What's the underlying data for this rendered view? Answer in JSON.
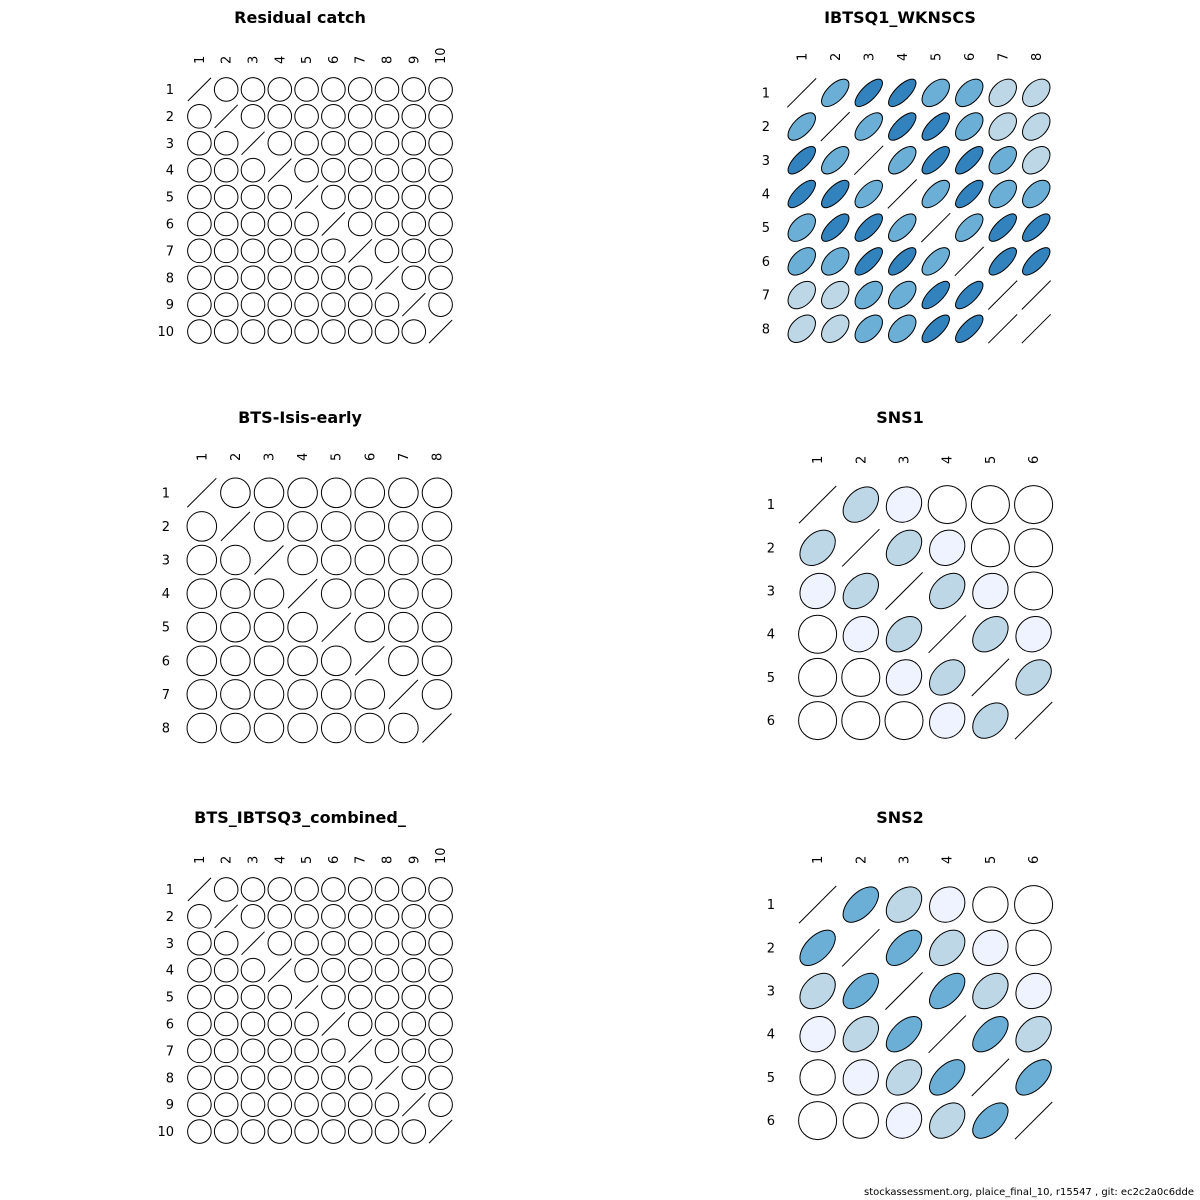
{
  "chart_data": [
    {
      "type": "correlation-ellipse-matrix",
      "title": "Residual catch",
      "labels": [
        "1",
        "2",
        "3",
        "4",
        "5",
        "6",
        "7",
        "8",
        "9",
        "10"
      ],
      "off_diagonal_correlation": 0.0
    },
    {
      "type": "correlation-ellipse-matrix",
      "title": "IBTSQ1_WKNSCS",
      "labels": [
        "1",
        "2",
        "3",
        "4",
        "5",
        "6",
        "7",
        "8"
      ],
      "matrix": [
        [
          1,
          0.62,
          0.72,
          0.72,
          0.48,
          0.48,
          0.4,
          0.4
        ],
        [
          0.62,
          1,
          0.6,
          0.7,
          0.7,
          0.48,
          0.4,
          0.4
        ],
        [
          0.72,
          0.6,
          1,
          0.6,
          0.7,
          0.72,
          0.48,
          0.4
        ],
        [
          0.72,
          0.7,
          0.6,
          1,
          0.62,
          0.72,
          0.48,
          0.48
        ],
        [
          0.48,
          0.7,
          0.7,
          0.62,
          1,
          0.62,
          0.72,
          0.72
        ],
        [
          0.48,
          0.48,
          0.72,
          0.72,
          0.62,
          1,
          0.72,
          0.72
        ],
        [
          0.4,
          0.4,
          0.48,
          0.48,
          0.72,
          0.72,
          1,
          1
        ],
        [
          0.4,
          0.4,
          0.48,
          0.48,
          0.72,
          0.72,
          1,
          1
        ]
      ]
    },
    {
      "type": "correlation-ellipse-matrix",
      "title": "BTS-Isis-early",
      "labels": [
        "1",
        "2",
        "3",
        "4",
        "5",
        "6",
        "7",
        "8"
      ],
      "off_diagonal_correlation": 0.0
    },
    {
      "type": "correlation-ellipse-matrix",
      "title": "SNS1",
      "labels": [
        "1",
        "2",
        "3",
        "4",
        "5",
        "6"
      ],
      "matrix": [
        [
          1,
          0.35,
          0.12,
          0.0,
          0.0,
          0.0
        ],
        [
          0.35,
          1,
          0.35,
          0.12,
          0.0,
          0.0
        ],
        [
          0.12,
          0.35,
          1,
          0.35,
          0.12,
          0.0
        ],
        [
          0.0,
          0.12,
          0.35,
          1,
          0.35,
          0.12
        ],
        [
          0.0,
          0.0,
          0.12,
          0.35,
          1,
          0.35
        ],
        [
          0.0,
          0.0,
          0.0,
          0.12,
          0.35,
          1
        ]
      ]
    },
    {
      "type": "correlation-ellipse-matrix",
      "title": "BTS_IBTSQ3_combined_",
      "labels": [
        "1",
        "2",
        "3",
        "4",
        "5",
        "6",
        "7",
        "8",
        "9",
        "10"
      ],
      "off_diagonal_correlation": 0.0
    },
    {
      "type": "correlation-ellipse-matrix",
      "title": "SNS2",
      "labels": [
        "1",
        "2",
        "3",
        "4",
        "5",
        "6"
      ],
      "matrix": [
        [
          1,
          0.55,
          0.35,
          0.12,
          0.02,
          0.0
        ],
        [
          0.55,
          1,
          0.55,
          0.35,
          0.12,
          0.02
        ],
        [
          0.35,
          0.55,
          1,
          0.55,
          0.35,
          0.12
        ],
        [
          0.12,
          0.35,
          0.55,
          1,
          0.55,
          0.35
        ],
        [
          0.02,
          0.12,
          0.35,
          0.55,
          1,
          0.55
        ],
        [
          0.0,
          0.02,
          0.12,
          0.35,
          0.55,
          1
        ]
      ]
    }
  ],
  "colors": {
    "outline": "#000000",
    "scale": [
      "#ffffff",
      "#eff3ff",
      "#bdd7e7",
      "#6baed6",
      "#3182bd"
    ]
  },
  "footer": "stockassessment.org, plaice_final_10, r15547 , git: ec2c2a0c6dde"
}
